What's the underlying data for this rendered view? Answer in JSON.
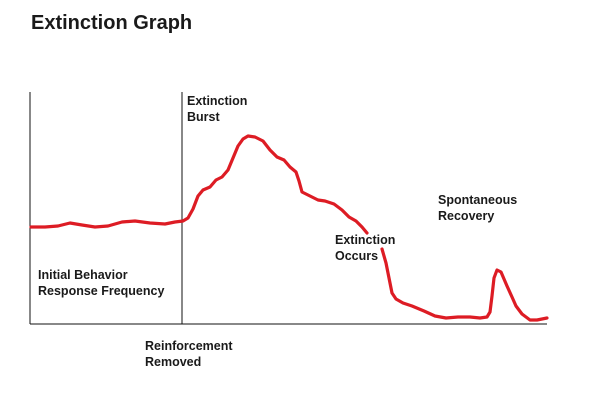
{
  "title": "Extinction Graph",
  "labels": {
    "extinction_burst": [
      "Extinction",
      "Burst"
    ],
    "extinction_occurs": [
      "Extinction",
      "Occurs"
    ],
    "spontaneous_recovery": [
      "Spontaneous",
      "Recovery"
    ],
    "initial_behavior": [
      "Initial Behavior",
      "Response Frequency"
    ],
    "reinforcement_removed": [
      "Reinforcement",
      "Removed"
    ]
  },
  "colors": {
    "curve": "#dd1c24",
    "axes": "#111111",
    "text": "#1a1a1a"
  }
}
